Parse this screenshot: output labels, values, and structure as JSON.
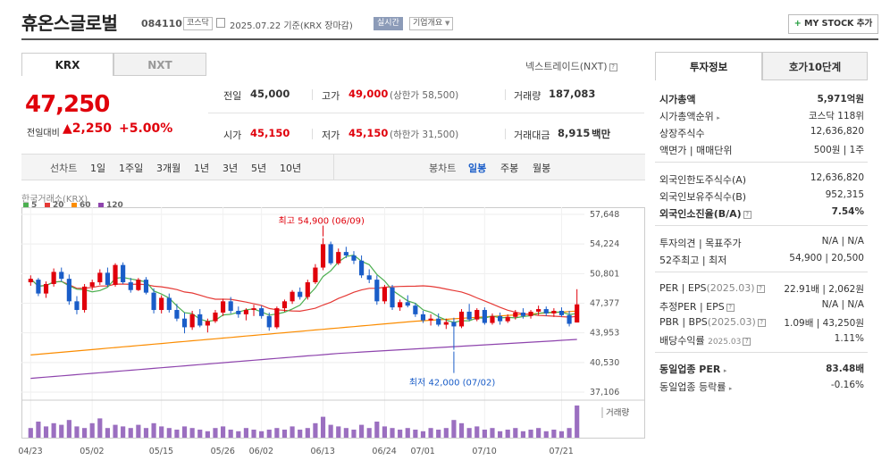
{
  "header": {
    "title": "휴온스글로벌",
    "code": "084110",
    "market_badge": "코스닥",
    "date": "2025.07.22  기준(KRX 장마감)",
    "realtime_badge": "실시간",
    "company_badge": "기업개요",
    "mystock_label": "MY STOCK 추가"
  },
  "exchange_tabs": [
    "KRX",
    "NXT"
  ],
  "nxt_link": "넥스트레이드(NXT)",
  "price": {
    "current": "47,250",
    "change_label": "전일대비",
    "change": "▲2,250",
    "change_pct": "+5.00%"
  },
  "quote": {
    "prev_close_label": "전일",
    "prev_close": "45,000",
    "high_label": "고가",
    "high": "49,000",
    "upper_limit": "(상한가 58,500)",
    "volume_label": "거래량",
    "volume": "187,083",
    "open_label": "시가",
    "open": "45,150",
    "low_label": "저가",
    "low": "45,150",
    "lower_limit": "(하한가 31,500)",
    "amount_label": "거래대금",
    "amount": "8,915",
    "amount_unit": "백만"
  },
  "period_bar": {
    "label": "선차트",
    "periods": [
      "1일",
      "1주일",
      "3개월",
      "1년",
      "3년",
      "5년",
      "10년"
    ],
    "candle_label": "봉차트",
    "candle_periods": [
      "일봉",
      "주봉",
      "월봉"
    ],
    "active_candle": "일봉"
  },
  "chart_data": {
    "type": "candlestick",
    "source_label": "한국거래소(KRX)",
    "moving_averages": [
      {
        "name": "5",
        "color": "#4caf50"
      },
      {
        "name": "20",
        "color": "#e53935"
      },
      {
        "name": "60",
        "color": "#fb8c00"
      },
      {
        "name": "120",
        "color": "#8e44ad"
      }
    ],
    "y_ticks": [
      "57,648",
      "54,224",
      "50,801",
      "47,377",
      "43,953",
      "40,530",
      "37,106"
    ],
    "ylim": [
      37106,
      57648
    ],
    "x_ticks": [
      "04/23",
      "05/02",
      "05/15",
      "05/26",
      "06/02",
      "06/13",
      "06/24",
      "07/01",
      "07/10",
      "07/21"
    ],
    "high_annotation": "최고 54,900 (06/09)",
    "low_annotation": "최저 42,000 (07/02)",
    "volume_label": "거래량",
    "candles": [
      [
        49800,
        50600,
        49400,
        50200
      ],
      [
        50100,
        50300,
        48200,
        48500
      ],
      [
        48500,
        49900,
        48000,
        49600
      ],
      [
        49600,
        51400,
        49300,
        51000
      ],
      [
        51000,
        51500,
        49900,
        50200
      ],
      [
        50200,
        50700,
        47200,
        47600
      ],
      [
        47600,
        48200,
        46100,
        46600
      ],
      [
        46600,
        49600,
        46300,
        49300
      ],
      [
        49300,
        50100,
        48900,
        49800
      ],
      [
        49800,
        51300,
        49500,
        50900
      ],
      [
        50900,
        51500,
        49300,
        49500
      ],
      [
        49500,
        52000,
        49300,
        51800
      ],
      [
        51800,
        52100,
        49600,
        49800
      ],
      [
        49800,
        50300,
        48600,
        48900
      ],
      [
        48900,
        50300,
        48800,
        50100
      ],
      [
        50100,
        50400,
        48400,
        48600
      ],
      [
        48600,
        49100,
        46200,
        46600
      ],
      [
        46600,
        48300,
        46200,
        48000
      ],
      [
        48000,
        48500,
        46300,
        46600
      ],
      [
        46600,
        47300,
        45300,
        45600
      ],
      [
        45600,
        46300,
        43900,
        44600
      ],
      [
        44600,
        46500,
        44300,
        46100
      ],
      [
        46100,
        46700,
        44600,
        44800
      ],
      [
        44800,
        45600,
        44000,
        45300
      ],
      [
        45300,
        46600,
        45100,
        46300
      ],
      [
        46300,
        47900,
        45900,
        47600
      ],
      [
        47600,
        48100,
        46200,
        46500
      ],
      [
        46500,
        47000,
        45700,
        46100
      ],
      [
        46100,
        46800,
        45400,
        46600
      ],
      [
        46600,
        47200,
        45900,
        46800
      ],
      [
        46800,
        47100,
        45600,
        45900
      ],
      [
        45900,
        46300,
        44200,
        44600
      ],
      [
        44600,
        47000,
        44400,
        46800
      ],
      [
        46800,
        47800,
        46400,
        47600
      ],
      [
        47600,
        48900,
        47300,
        48700
      ],
      [
        48700,
        49200,
        47800,
        48100
      ],
      [
        48100,
        50100,
        47800,
        49800
      ],
      [
        49800,
        51900,
        49600,
        51500
      ],
      [
        51500,
        54900,
        51200,
        54200
      ],
      [
        54200,
        54500,
        51800,
        52000
      ],
      [
        52000,
        53700,
        51800,
        53300
      ],
      [
        53300,
        53900,
        52600,
        52900
      ],
      [
        52900,
        53400,
        51900,
        52300
      ],
      [
        52300,
        52900,
        50300,
        50600
      ],
      [
        50600,
        51300,
        49700,
        50100
      ],
      [
        50100,
        50600,
        47200,
        47600
      ],
      [
        47600,
        49500,
        47300,
        49200
      ],
      [
        49200,
        49500,
        46600,
        46900
      ],
      [
        46900,
        47800,
        46500,
        47500
      ],
      [
        47500,
        48300,
        46900,
        47100
      ],
      [
        47100,
        47400,
        45800,
        46100
      ],
      [
        46100,
        46500,
        45100,
        45400
      ],
      [
        45400,
        46100,
        44800,
        45600
      ],
      [
        45600,
        46200,
        44700,
        44900
      ],
      [
        44900,
        45600,
        44400,
        45200
      ],
      [
        45200,
        45700,
        42000,
        44700
      ],
      [
        44700,
        46700,
        44500,
        46400
      ],
      [
        46400,
        47300,
        45300,
        45500
      ],
      [
        45500,
        46800,
        45300,
        46600
      ],
      [
        46600,
        46900,
        44900,
        45100
      ],
      [
        45100,
        46200,
        44900,
        45900
      ],
      [
        45900,
        46300,
        44900,
        45300
      ],
      [
        45300,
        46100,
        45100,
        45800
      ],
      [
        45800,
        46600,
        45500,
        46300
      ],
      [
        46300,
        46800,
        45600,
        45900
      ],
      [
        45900,
        46600,
        45600,
        46400
      ],
      [
        46400,
        47100,
        46000,
        46700
      ],
      [
        46700,
        47000,
        45900,
        46200
      ],
      [
        46200,
        46800,
        45800,
        46500
      ],
      [
        46500,
        46900,
        45800,
        46000
      ],
      [
        46000,
        46500,
        44700,
        45000
      ],
      [
        45150,
        49000,
        45150,
        47250
      ]
    ],
    "volume_relative": [
      0.3,
      0.5,
      0.35,
      0.45,
      0.4,
      0.55,
      0.35,
      0.3,
      0.45,
      0.6,
      0.3,
      0.4,
      0.35,
      0.3,
      0.4,
      0.3,
      0.45,
      0.35,
      0.3,
      0.25,
      0.35,
      0.3,
      0.25,
      0.2,
      0.3,
      0.35,
      0.25,
      0.2,
      0.3,
      0.25,
      0.2,
      0.25,
      0.3,
      0.25,
      0.35,
      0.25,
      0.3,
      0.45,
      0.65,
      0.4,
      0.35,
      0.3,
      0.25,
      0.4,
      0.3,
      0.5,
      0.35,
      0.3,
      0.25,
      0.3,
      0.25,
      0.2,
      0.3,
      0.25,
      0.3,
      0.55,
      0.45,
      0.3,
      0.35,
      0.25,
      0.3,
      0.2,
      0.25,
      0.3,
      0.2,
      0.25,
      0.3,
      0.2,
      0.25,
      0.2,
      0.3,
      1.0
    ]
  },
  "right_panel": {
    "tabs": [
      "투자정보",
      "호가10단계"
    ],
    "market_cap_label": "시가총액",
    "market_cap": "5,971억원",
    "market_cap_rank_label": "시가총액순위",
    "market_cap_rank": "코스닥 118위",
    "shares_label": "상장주식수",
    "shares": "12,636,820",
    "par_label": "액면가 | 매매단위",
    "par": "500원 | 1주",
    "foreign_limit_label": "외국인한도주식수(A)",
    "foreign_limit": "12,636,820",
    "foreign_hold_label": "외국인보유주식수(B)",
    "foreign_hold": "952,315",
    "foreign_ratio_label": "외국인소진율(B/A)",
    "foreign_ratio": "7.54%",
    "opinion_label": "투자의견 | 목표주가",
    "opinion": "N/A | N/A",
    "week52_label": "52주최고 | 최저",
    "week52": "54,900 | 20,500",
    "per_label": "PER | EPS",
    "per_period": "(2025.03)",
    "per": "22.91배 | 2,062원",
    "est_per_label": "추정PER | EPS",
    "est_per": "N/A | N/A",
    "pbr_label": "PBR | BPS",
    "pbr_period": "(2025.03)",
    "pbr": "1.09배 | 43,250원",
    "dividend_label": "배당수익률",
    "dividend_period": "2025.03",
    "dividend": "1.11%",
    "sector_per_label": "동일업종 PER",
    "sector_per": "83.48배",
    "sector_change_label": "동일업종 등락률",
    "sector_change": "-0.16%"
  },
  "colors": {
    "up": "#e0000b",
    "down": "#1a5dc8"
  }
}
